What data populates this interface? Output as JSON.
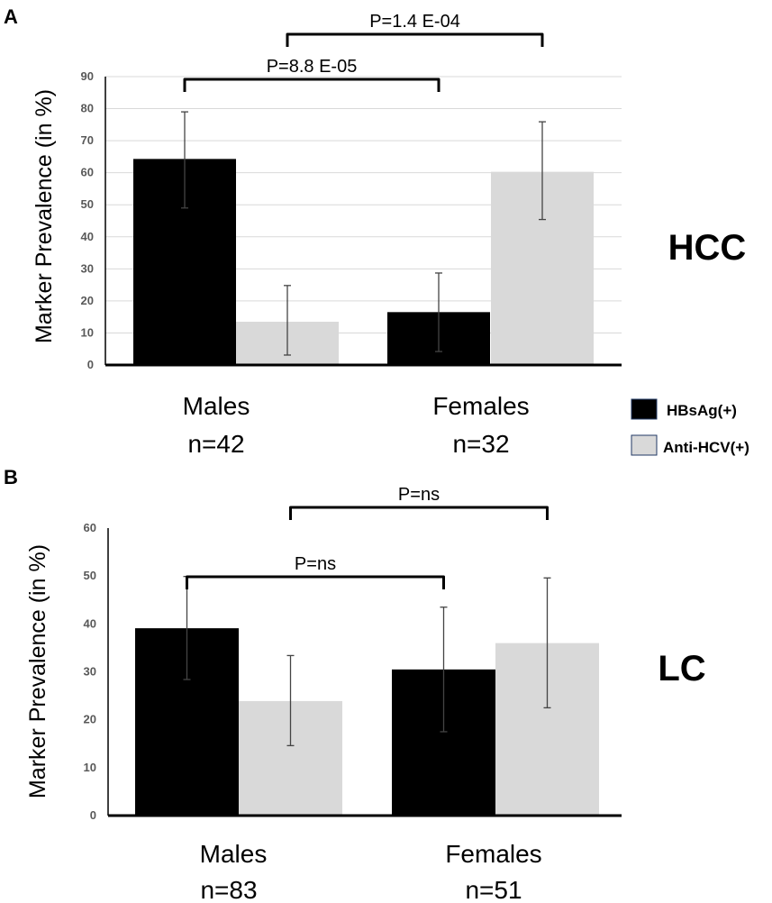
{
  "colors": {
    "hbsag": "#000000",
    "antihcv": "#d9d9d9",
    "grid": "#d9d9d9",
    "axis": "#000000",
    "errorbar": "#444444",
    "tick_text": "#595959"
  },
  "legend": {
    "items": [
      {
        "label": "HBsAg(+)",
        "color": "#000000"
      },
      {
        "label": "Anti-HCV(+)",
        "color": "#d9d9d9"
      }
    ]
  },
  "chart_data": [
    {
      "type": "bar",
      "panel_label": "A",
      "side_label": "HCC",
      "ylabel": "Marker Prevalence (in %)",
      "ylim": [
        0,
        90
      ],
      "yticks": [
        0,
        10,
        20,
        30,
        40,
        50,
        60,
        70,
        80,
        90
      ],
      "grid": true,
      "categories": [
        {
          "name": "Males",
          "n": "n=42"
        },
        {
          "name": "Females",
          "n": "n=32"
        }
      ],
      "series": [
        {
          "name": "HBsAg(+)",
          "values": [
            64.3,
            16.5
          ],
          "err_low": [
            49,
            4.2
          ],
          "err_high": [
            79,
            28.7
          ]
        },
        {
          "name": "Anti-HCV(+)",
          "values": [
            13.5,
            60.3
          ],
          "err_low": [
            3.1,
            45.4
          ],
          "err_high": [
            24.8,
            75.9
          ]
        }
      ],
      "annotations": [
        {
          "text": "P=1.4 E-04",
          "from": "Males:Anti-HCV(+)",
          "to": "Females:Anti-HCV(+)"
        },
        {
          "text": "P=8.8 E-05",
          "from": "Males:HBsAg(+)",
          "to": "Females:HBsAg(+)"
        }
      ]
    },
    {
      "type": "bar",
      "panel_label": "B",
      "side_label": "LC",
      "ylabel": "Marker Prevalence (in %)",
      "ylim": [
        0,
        60
      ],
      "yticks": [
        0,
        10,
        20,
        30,
        40,
        50,
        60
      ],
      "grid": false,
      "categories": [
        {
          "name": "Males",
          "n": "n=83"
        },
        {
          "name": "Females",
          "n": "n=51"
        }
      ],
      "series": [
        {
          "name": "HBsAg(+)",
          "values": [
            39.1,
            30.5
          ],
          "err_low": [
            28.4,
            17.5
          ],
          "err_high": [
            49.9,
            43.5
          ]
        },
        {
          "name": "Anti-HCV(+)",
          "values": [
            23.9,
            36.0
          ],
          "err_low": [
            14.6,
            22.5
          ],
          "err_high": [
            33.4,
            49.6
          ]
        }
      ],
      "annotations": [
        {
          "text": "P=ns",
          "from": "Males:Anti-HCV(+)",
          "to": "Females:Anti-HCV(+)"
        },
        {
          "text": "P=ns",
          "from": "Males:HBsAg(+)",
          "to": "Females:HBsAg(+)"
        }
      ]
    }
  ]
}
